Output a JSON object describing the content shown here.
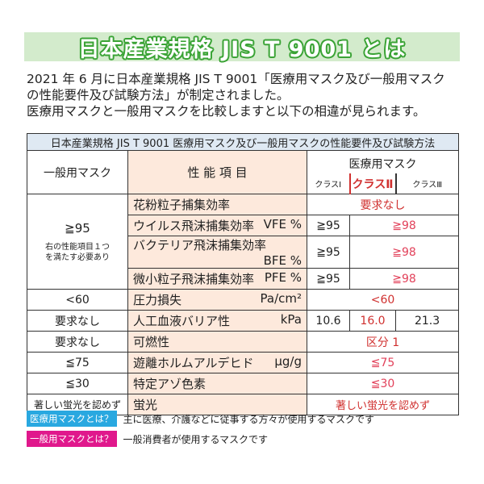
{
  "banner": {
    "title": "日本産業規格 JIS T 9001 とは"
  },
  "intro": {
    "line1": "2021 年 6 月に日本産業規格 JIS T 9001「医療用マスク及び一般用マスク",
    "line2": "の性能要件及び試験方法」が制定されました。",
    "line3": "医療用マスクと一般用マスクを比較しますと以下の相違が見られます。"
  },
  "table": {
    "caption": "日本産業規格 JIS T 9001 医療用マスク及び一般用マスクの性能要件及び試験方法",
    "header": {
      "general": "一般用マスク",
      "item": "性 能 項 目",
      "medical": "医療用マスク",
      "class1": "クラスⅠ",
      "class2": "クラスⅡ",
      "class3": "クラスⅢ"
    },
    "filtration_general": "≧95",
    "filtration_note1": "右の性能項目１つ",
    "filtration_note2": "を満たす必要あり",
    "rows": [
      {
        "item": "花粉粒子捕集効率",
        "unit": "",
        "medical": "要求なし"
      },
      {
        "item": "ウイルス飛沫捕集効率",
        "unit": "VFE %",
        "class1": "≧95",
        "class23": "≧98"
      },
      {
        "item": "バクテリア飛沫捕集効率",
        "unit": "BFE %",
        "class1": "≧95",
        "class23": "≧98"
      },
      {
        "item": "微小粒子飛沫捕集効率",
        "unit": "PFE %",
        "class1": "≧95",
        "class23": "≧98"
      },
      {
        "general": "<60",
        "item": "圧力損失",
        "unit": "Pa/cm²",
        "medical": "<60"
      },
      {
        "general": "要求なし",
        "item": "人工血液バリア性",
        "unit": "kPa",
        "class1": "10.6",
        "class2": "16.0",
        "class3": "21.3"
      },
      {
        "general": "要求なし",
        "item": "可燃性",
        "unit": "",
        "medical": "区分 1"
      },
      {
        "general": "≦75",
        "item": "遊離ホルムアルデヒド",
        "unit": "μg/g",
        "medical": "≦75"
      },
      {
        "general": "≦30",
        "item": "特定アゾ色素",
        "unit": "",
        "medical": "≦30"
      },
      {
        "general": "著しい蛍光を認めず",
        "item": "蛍光",
        "unit": "",
        "medical": "著しい蛍光を認めず"
      }
    ]
  },
  "footnotes": [
    {
      "label": "医療用マスクとは？",
      "text": "主に医療、介護などに従事する方々が使用するマスクです",
      "color": "#29a8e0"
    },
    {
      "label": "一般用マスクとは？",
      "text": "一般消費者が使用するマスクです",
      "color": "#e0188c"
    }
  ]
}
